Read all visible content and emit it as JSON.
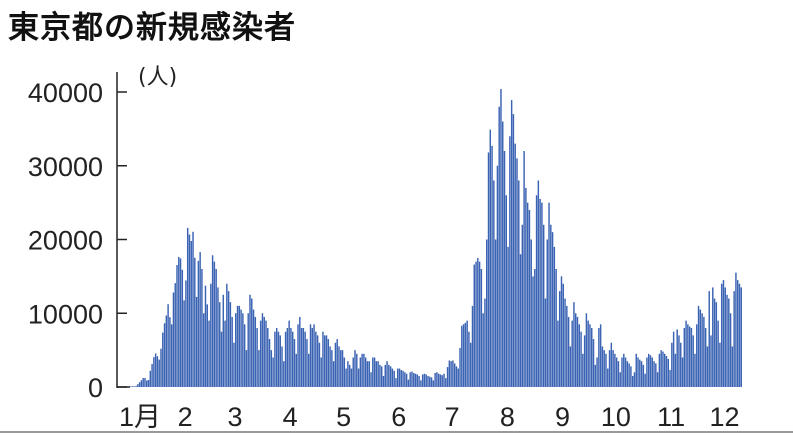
{
  "chart_data": {
    "type": "bar",
    "title": "東京都の新規感染者",
    "ylabel": "(人)",
    "xlabel": "",
    "ylim": [
      0,
      40000
    ],
    "yticks": [
      0,
      10000,
      20000,
      30000,
      40000
    ],
    "ytick_labels": [
      "0",
      "10000",
      "20000",
      "30000",
      "40000"
    ],
    "x_start": "2022-01-01",
    "month_labels": [
      "1月",
      "2",
      "3",
      "4",
      "5",
      "6",
      "7",
      "8",
      "9",
      "10",
      "11",
      "12"
    ],
    "grid": false,
    "bar_color": "#3b63b3",
    "values": [
      78,
      103,
      84,
      151,
      390,
      641,
      922,
      1224,
      1223,
      871,
      962,
      2198,
      3124,
      4051,
      4561,
      4172,
      3709,
      5185,
      7377,
      8638,
      9699,
      11227,
      9468,
      8503,
      12813,
      14086,
      16538,
      17631,
      17433,
      15895,
      11751,
      14445,
      21576,
      20679,
      19798,
      21050,
      17526,
      12214,
      17113,
      18287,
      16000,
      10000,
      13741,
      11205,
      9000,
      14000,
      17864,
      17000,
      16000,
      13500,
      11500,
      7500,
      12500,
      9000,
      14000,
      13000,
      11500,
      9500,
      6000,
      10000,
      11000,
      11000,
      10500,
      10000,
      8500,
      5000,
      10000,
      12500,
      12000,
      10500,
      9500,
      8000,
      5000,
      9000,
      10000,
      9500,
      9000,
      8000,
      6500,
      5000,
      4000,
      7500,
      8000,
      7500,
      7000,
      5500,
      3500,
      7500,
      8000,
      9000,
      8000,
      7500,
      6500,
      4500,
      8500,
      9500,
      8000,
      8000,
      7500,
      6500,
      4500,
      8500,
      8000,
      8500,
      7500,
      7000,
      6000,
      4000,
      7500,
      7000,
      7000,
      6500,
      5500,
      5000,
      3500,
      6000,
      6500,
      5500,
      5000,
      5000,
      4000,
      2500,
      3500,
      3000,
      2500,
      4000,
      5000,
      4500,
      2500,
      4000,
      4500,
      4500,
      4000,
      3500,
      3500,
      2000,
      4000,
      4000,
      3500,
      3500,
      3000,
      2800,
      1500,
      3000,
      3500,
      3000,
      2800,
      2500,
      2200,
      1200,
      2500,
      2500,
      2300,
      2200,
      2000,
      1800,
      1000,
      2000,
      2100,
      1900,
      1800,
      1700,
      1500,
      900,
      1700,
      1800,
      1700,
      1500,
      1400,
      1300,
      900,
      1900,
      2000,
      1800,
      1700,
      1600,
      1800,
      1200,
      2700,
      3600,
      3500,
      3600,
      3200,
      2800,
      2500,
      5300,
      8300,
      8500,
      8700,
      9000,
      7500,
      6000,
      11000,
      16600,
      17000,
      17500,
      17000,
      16000,
      10000,
      12000,
      20000,
      31800,
      34900,
      32700,
      28000,
      20000,
      30000,
      38000,
      40400,
      36000,
      32000,
      26000,
      19000,
      34000,
      38900,
      37000,
      33000,
      31000,
      28000,
      18000,
      22000,
      32000,
      27000,
      25000,
      24000,
      20000,
      15000,
      16000,
      26000,
      28000,
      25500,
      25000,
      22000,
      12000,
      20000,
      25000,
      22000,
      21000,
      19000,
      16000,
      9000,
      13000,
      15000,
      14000,
      12000,
      11000,
      9500,
      5500,
      9000,
      11500,
      10000,
      9500,
      8500,
      7500,
      4500,
      7000,
      10000,
      9000,
      8500,
      8000,
      6500,
      3000,
      4000,
      8000,
      8500,
      5500,
      5000,
      4500,
      2500,
      5000,
      6000,
      5000,
      4500,
      4000,
      3500,
      2000,
      4000,
      4500,
      4000,
      3500,
      3200,
      2800,
      1500,
      2000,
      4500,
      4000,
      3700,
      3500,
      3000,
      1800,
      4000,
      4500,
      4300,
      4000,
      3500,
      3200,
      2000,
      4500,
      5000,
      4800,
      4500,
      4200,
      3800,
      2300,
      6000,
      7500,
      4500,
      7800,
      7000,
      6000,
      4000,
      8000,
      9000,
      8500,
      8200,
      8000,
      7000,
      4500,
      8500,
      11000,
      10500,
      10000,
      9500,
      8000,
      5500,
      13000,
      7000,
      13500,
      12000,
      11500,
      9000,
      6000,
      14000,
      14500,
      13500,
      12500,
      12000,
      10000,
      5500,
      13000,
      15500,
      14500,
      14000,
      13500
    ]
  }
}
